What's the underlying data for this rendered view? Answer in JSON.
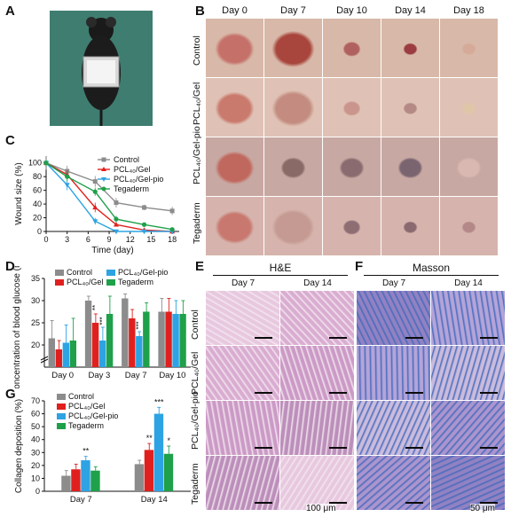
{
  "panels": {
    "A": "A",
    "B": "B",
    "C": "C",
    "D": "D",
    "E": "E",
    "F": "F",
    "G": "G"
  },
  "groups": [
    "Control",
    "PCL₄₀/Gel",
    "PCL₄₀/Gel-pio",
    "Tegaderm"
  ],
  "colors": {
    "Control": "#8c8c8c",
    "PCL40/Gel": "#e0201e",
    "PCL40/Gel-pio": "#2ea3e3",
    "Tegaderm": "#1fa04a"
  },
  "panel_b": {
    "days": [
      "Day 0",
      "Day 7",
      "Day 10",
      "Day 14",
      "Day 18"
    ],
    "rows": [
      "Control",
      "PCL₄₀/Gel",
      "PCL₄₀/Gel-pio",
      "Tegaderm"
    ]
  },
  "panel_e": {
    "title": "H&E",
    "days": [
      "Day 7",
      "Day 14"
    ],
    "rows": [
      "Control",
      "PCL₄₀/Gel",
      "PCL₄₀/Gel-pio",
      "Tegaderm"
    ],
    "scale": "100 μm"
  },
  "panel_f": {
    "title": "Masson",
    "days": [
      "Day 7",
      "Day 14"
    ],
    "scale": "50 μm"
  },
  "chart_data": [
    {
      "panel": "C",
      "type": "line",
      "xlabel": "Time (day)",
      "ylabel": "Wound size (%)",
      "x": [
        0,
        3,
        7,
        9,
        10,
        14,
        18
      ],
      "xticks": [
        0,
        3,
        6,
        9,
        12,
        15,
        18
      ],
      "yticks": [
        0,
        20,
        40,
        60,
        80,
        100
      ],
      "xlim": [
        0,
        19
      ],
      "ylim": [
        0,
        110
      ],
      "series": [
        {
          "name": "Control",
          "x": [
            0,
            3,
            7,
            10,
            14,
            18
          ],
          "values": [
            100,
            88,
            73,
            42,
            35,
            30
          ],
          "err": [
            10,
            8,
            8,
            7,
            4,
            6
          ],
          "marker": "square"
        },
        {
          "name": "PCL₄₀/Gel",
          "x": [
            0,
            3,
            7,
            10,
            14,
            18
          ],
          "values": [
            100,
            83,
            35,
            10,
            2,
            0
          ],
          "err": [
            4,
            6,
            7,
            3,
            1,
            0
          ],
          "marker": "triangle"
        },
        {
          "name": "PCL₄₀/Gel-pio",
          "x": [
            0,
            3,
            7,
            10,
            14,
            18
          ],
          "values": [
            100,
            68,
            15,
            0,
            0,
            0
          ],
          "err": [
            4,
            8,
            5,
            0,
            0,
            0
          ],
          "marker": "tri-down"
        },
        {
          "name": "Tegaderm",
          "x": [
            0,
            3,
            7,
            10,
            14,
            18
          ],
          "values": [
            100,
            80,
            58,
            18,
            10,
            3
          ],
          "err": [
            5,
            7,
            6,
            5,
            3,
            1
          ],
          "marker": "circle"
        }
      ]
    },
    {
      "panel": "D",
      "type": "bar",
      "ylabel": "Concentration of blood glucose (mM)",
      "categories": [
        "Day 0",
        "Day 3",
        "Day 7",
        "Day 10"
      ],
      "yticks": [
        20,
        25,
        30,
        35
      ],
      "ylim": [
        15,
        35
      ],
      "axis_break": true,
      "series": [
        {
          "name": "Control",
          "values": [
            21.5,
            30,
            30.5,
            27.5
          ],
          "err": [
            4,
            1,
            1,
            3
          ]
        },
        {
          "name": "PCL₄₀/Gel",
          "values": [
            19,
            25,
            26,
            27.5
          ],
          "err": [
            2,
            2,
            2,
            3
          ]
        },
        {
          "name": "PCL₄₀/Gel-pio",
          "values": [
            20.5,
            21,
            22,
            27
          ],
          "err": [
            4,
            3,
            1,
            3
          ]
        },
        {
          "name": "Tegaderm",
          "values": [
            21,
            27,
            27.5,
            27
          ],
          "err": [
            5,
            4,
            2,
            3
          ]
        }
      ],
      "annotations": [
        {
          "category": "Day 3",
          "series": "PCL₄₀/Gel",
          "text": "**"
        },
        {
          "category": "Day 3",
          "series": "PCL₄₀/Gel-pio",
          "text": "***"
        },
        {
          "category": "Day 7",
          "series": "PCL₄₀/Gel-pio",
          "text": "***"
        }
      ]
    },
    {
      "panel": "G",
      "type": "bar",
      "ylabel": "Collagen deposition (%)",
      "categories": [
        "Day 7",
        "Day 14"
      ],
      "yticks": [
        0,
        10,
        20,
        30,
        40,
        50,
        60,
        70
      ],
      "ylim": [
        0,
        70
      ],
      "series": [
        {
          "name": "Control",
          "values": [
            12,
            21
          ],
          "err": [
            4,
            3
          ]
        },
        {
          "name": "PCL₄₀/Gel",
          "values": [
            17,
            32
          ],
          "err": [
            4,
            5
          ]
        },
        {
          "name": "PCL₄₀/Gel-pio",
          "values": [
            24,
            60
          ],
          "err": [
            3,
            5
          ]
        },
        {
          "name": "Tegaderm",
          "values": [
            16,
            29
          ],
          "err": [
            3,
            6
          ]
        }
      ],
      "annotations": [
        {
          "category": "Day 7",
          "series": "PCL₄₀/Gel-pio",
          "text": "**"
        },
        {
          "category": "Day 14",
          "series": "PCL₄₀/Gel",
          "text": "**"
        },
        {
          "category": "Day 14",
          "series": "PCL₄₀/Gel-pio",
          "text": "***"
        },
        {
          "category": "Day 14",
          "series": "Tegaderm",
          "text": "*"
        }
      ]
    }
  ]
}
